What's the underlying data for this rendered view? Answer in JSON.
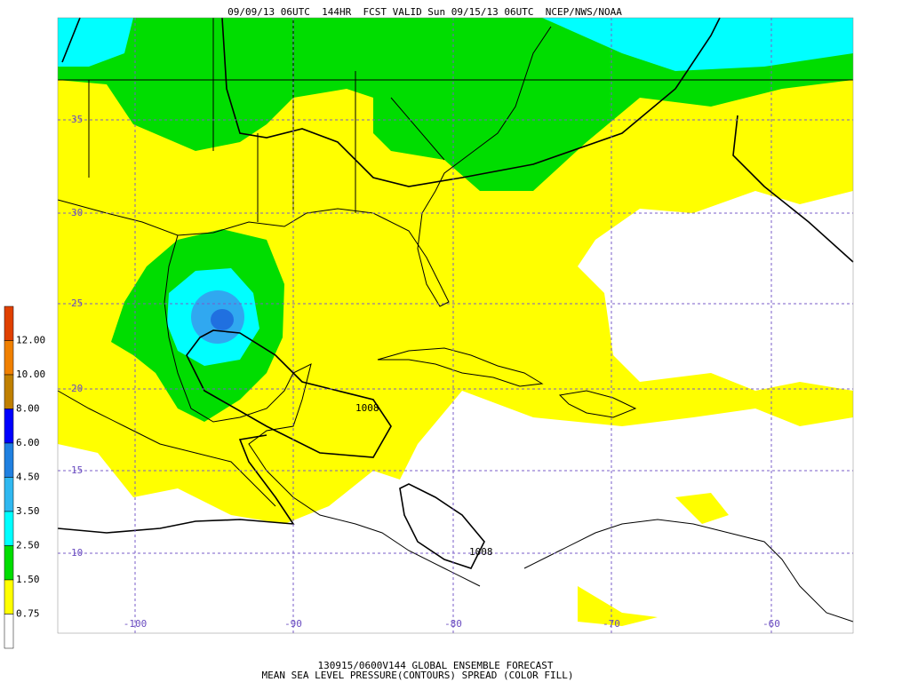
{
  "header": {
    "title": "09/09/13 06UTC  144HR  FCST VALID Sun 09/15/13 06UTC  NCEP/NWS/NOAA"
  },
  "map": {
    "latitude_labels": [
      "35",
      "30",
      "25",
      "20",
      "15",
      "10"
    ],
    "longitude_labels": [
      "-100",
      "-90",
      "-80",
      "-70",
      "-60"
    ],
    "contour_labels": [
      "1008",
      "1008"
    ]
  },
  "colorbar": {
    "labels": [
      "12.00",
      "10.00",
      "8.00",
      "6.00",
      "4.50",
      "3.50",
      "2.50",
      "1.50",
      "0.75"
    ]
  },
  "footer": {
    "lines": [
      "130915/0600V144 GLOBAL ENSEMBLE FORECAST",
      "MEAN SEA LEVEL PRESSURE(CONTOURS) SPREAD (COLOR FILL)"
    ]
  }
}
